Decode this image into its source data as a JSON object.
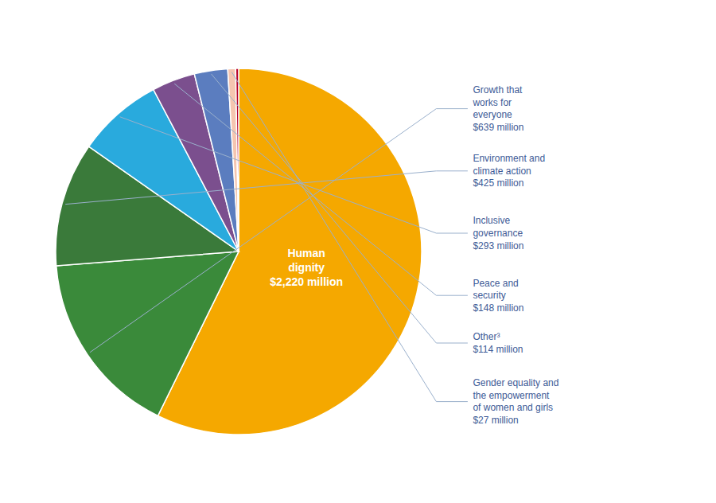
{
  "chart_data": {
    "type": "pie",
    "categories": [
      "Human\ndignity\n$2,220 million",
      "Growth that\nworks for\neveryone\n$639 million",
      "Environment and\nclimate action\n$425 million",
      "Inclusive\ngovernance\n$293 million",
      "Peace and\nsecurity\n$148 million",
      "Other³\n$114 million",
      "Gender equality and\nthe empowerment\nof women and girls\n$27 million",
      null
    ],
    "values": [
      2220,
      639,
      425,
      293,
      148,
      114,
      27,
      10
    ],
    "colors": [
      "#F5A800",
      "#3A8A3A",
      "#3A7A3A",
      "#29AADD",
      "#7B4F8E",
      "#5B7DBF",
      "#F5C5B0",
      "#B8002A"
    ]
  }
}
